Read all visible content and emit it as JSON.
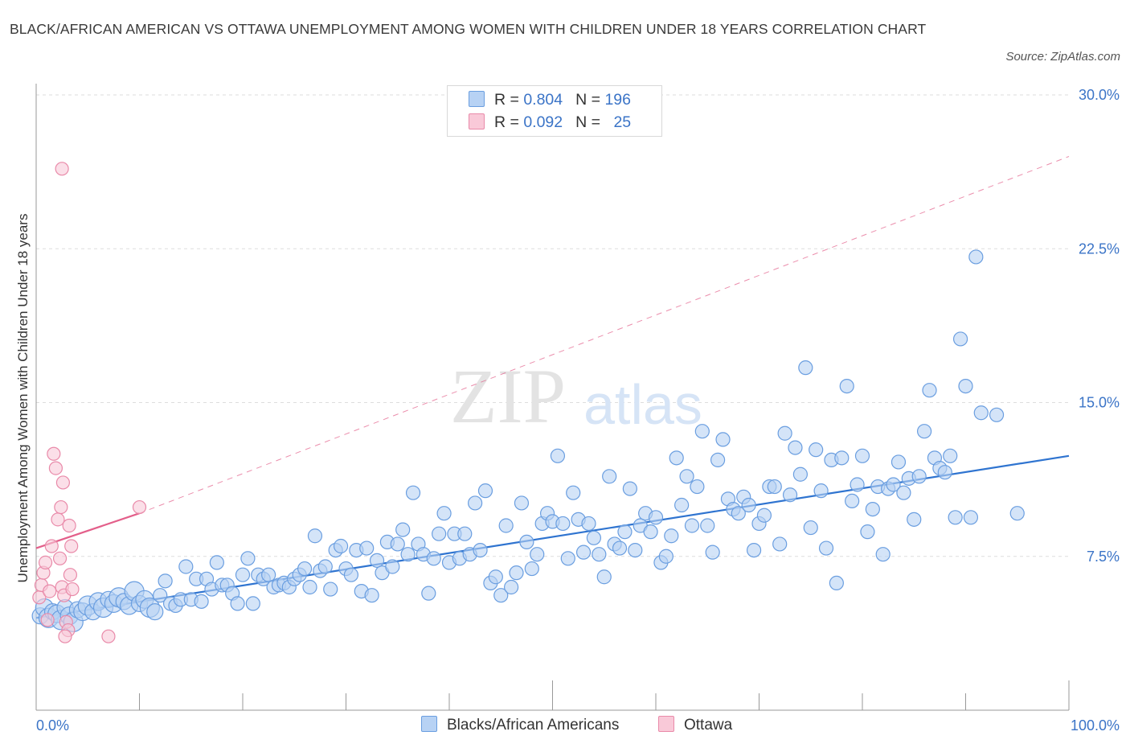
{
  "title": "BLACK/AFRICAN AMERICAN VS OTTAWA UNEMPLOYMENT AMONG WOMEN WITH CHILDREN UNDER 18 YEARS CORRELATION CHART",
  "source": "Source: ZipAtlas.com",
  "watermark": {
    "zip": "ZIP",
    "atlas": "atlas"
  },
  "legend": {
    "rows": [
      {
        "r_label": "R =",
        "r_value": "0.804",
        "n_label": "N =",
        "n_value": "196"
      },
      {
        "r_label": "R =",
        "r_value": "0.092",
        "n_label": "N =",
        "n_value": "25"
      }
    ]
  },
  "colors": {
    "blue_fill": "#b7d2f4",
    "blue_stroke": "#6a9ee0",
    "blue_line": "#2f74d0",
    "pink_fill": "#f9c9d8",
    "pink_stroke": "#e98aa9",
    "pink_line": "#e35f8a",
    "axis_text": "#3b74c7",
    "grid": "#dddddd"
  },
  "chart_data": {
    "type": "scatter",
    "title": "BLACK/AFRICAN AMERICAN VS OTTAWA UNEMPLOYMENT AMONG WOMEN WITH CHILDREN UNDER 18 YEARS CORRELATION CHART",
    "xlabel": "",
    "ylabel": "Unemployment Among Women with Children Under 18 years",
    "x_tick_labels": [
      "0.0%",
      "100.0%"
    ],
    "y_tick_labels": [
      "7.5%",
      "15.0%",
      "22.5%",
      "30.0%"
    ],
    "xlim": [
      0,
      100
    ],
    "ylim": [
      0,
      30
    ],
    "yticks": [
      7.5,
      15.0,
      22.5,
      30.0
    ],
    "grid": true,
    "legend_position": "bottom",
    "series": [
      {
        "name": "Blacks/African Americans",
        "R": 0.804,
        "N": 196,
        "trend": {
          "x": [
            0,
            100
          ],
          "y": [
            4.5,
            12.4
          ]
        },
        "points": [
          [
            0.4,
            4.6
          ],
          [
            0.8,
            5.0
          ],
          [
            1.2,
            4.5
          ],
          [
            1.6,
            4.8
          ],
          [
            2.0,
            4.7
          ],
          [
            2.4,
            4.4
          ],
          [
            2.8,
            5.0
          ],
          [
            3.2,
            4.6
          ],
          [
            3.6,
            4.3
          ],
          [
            4.0,
            4.9
          ],
          [
            4.5,
            4.8
          ],
          [
            5.0,
            5.1
          ],
          [
            5.5,
            4.8
          ],
          [
            6.0,
            5.3
          ],
          [
            6.5,
            5.0
          ],
          [
            7.0,
            5.4
          ],
          [
            7.5,
            5.2
          ],
          [
            8.0,
            5.5
          ],
          [
            8.5,
            5.3
          ],
          [
            9.0,
            5.1
          ],
          [
            9.5,
            5.8
          ],
          [
            10.0,
            5.2
          ],
          [
            10.5,
            5.4
          ],
          [
            11.0,
            5.0
          ],
          [
            11.5,
            4.8
          ],
          [
            12.0,
            5.6
          ],
          [
            12.5,
            6.3
          ],
          [
            13.0,
            5.2
          ],
          [
            13.5,
            5.1
          ],
          [
            14.0,
            5.4
          ],
          [
            14.5,
            7.0
          ],
          [
            15.0,
            5.4
          ],
          [
            15.5,
            6.4
          ],
          [
            16.0,
            5.3
          ],
          [
            16.5,
            6.4
          ],
          [
            17.0,
            5.9
          ],
          [
            17.5,
            7.2
          ],
          [
            18.0,
            6.1
          ],
          [
            18.5,
            6.1
          ],
          [
            19.0,
            5.7
          ],
          [
            19.5,
            5.2
          ],
          [
            20.0,
            6.6
          ],
          [
            20.5,
            7.4
          ],
          [
            21.0,
            5.2
          ],
          [
            21.5,
            6.6
          ],
          [
            22.0,
            6.4
          ],
          [
            22.5,
            6.6
          ],
          [
            23.0,
            6.0
          ],
          [
            23.5,
            6.1
          ],
          [
            24.0,
            6.2
          ],
          [
            24.5,
            6.0
          ],
          [
            25.0,
            6.4
          ],
          [
            25.5,
            6.6
          ],
          [
            26.0,
            6.9
          ],
          [
            26.5,
            6.0
          ],
          [
            27.0,
            8.5
          ],
          [
            27.5,
            6.8
          ],
          [
            28.0,
            7.0
          ],
          [
            28.5,
            5.9
          ],
          [
            29.0,
            7.8
          ],
          [
            29.5,
            8.0
          ],
          [
            30.0,
            6.9
          ],
          [
            30.5,
            6.6
          ],
          [
            31.0,
            7.8
          ],
          [
            31.5,
            5.8
          ],
          [
            32.0,
            7.9
          ],
          [
            32.5,
            5.6
          ],
          [
            33.0,
            7.3
          ],
          [
            33.5,
            6.7
          ],
          [
            34.0,
            8.2
          ],
          [
            34.5,
            7.0
          ],
          [
            35.0,
            8.1
          ],
          [
            35.5,
            8.8
          ],
          [
            36.0,
            7.6
          ],
          [
            36.5,
            10.6
          ],
          [
            37.0,
            8.1
          ],
          [
            37.5,
            7.6
          ],
          [
            38.0,
            5.7
          ],
          [
            38.5,
            7.4
          ],
          [
            39.0,
            8.6
          ],
          [
            39.5,
            9.6
          ],
          [
            40.0,
            7.2
          ],
          [
            40.5,
            8.6
          ],
          [
            41.0,
            7.4
          ],
          [
            41.5,
            8.6
          ],
          [
            42.0,
            7.6
          ],
          [
            42.5,
            10.1
          ],
          [
            43.0,
            7.8
          ],
          [
            43.5,
            10.7
          ],
          [
            44.0,
            6.2
          ],
          [
            44.5,
            6.5
          ],
          [
            45.0,
            5.6
          ],
          [
            45.5,
            9.0
          ],
          [
            46.0,
            6.0
          ],
          [
            46.5,
            6.7
          ],
          [
            47.0,
            10.1
          ],
          [
            47.5,
            8.2
          ],
          [
            48.0,
            6.9
          ],
          [
            48.5,
            7.6
          ],
          [
            49.0,
            9.1
          ],
          [
            49.5,
            9.6
          ],
          [
            50.0,
            9.2
          ],
          [
            50.5,
            12.4
          ],
          [
            51.0,
            9.1
          ],
          [
            51.5,
            7.4
          ],
          [
            52.0,
            10.6
          ],
          [
            52.5,
            9.3
          ],
          [
            53.0,
            7.7
          ],
          [
            53.5,
            9.1
          ],
          [
            54.0,
            8.4
          ],
          [
            54.5,
            7.6
          ],
          [
            55.0,
            6.5
          ],
          [
            55.5,
            11.4
          ],
          [
            56.0,
            8.1
          ],
          [
            56.5,
            7.9
          ],
          [
            57.0,
            8.7
          ],
          [
            57.5,
            10.8
          ],
          [
            58.0,
            7.8
          ],
          [
            58.5,
            9.0
          ],
          [
            59.0,
            9.6
          ],
          [
            59.5,
            8.7
          ],
          [
            60.0,
            9.4
          ],
          [
            60.5,
            7.2
          ],
          [
            61.0,
            7.5
          ],
          [
            61.5,
            8.5
          ],
          [
            62.0,
            12.3
          ],
          [
            62.5,
            10.0
          ],
          [
            63.0,
            11.4
          ],
          [
            63.5,
            9.0
          ],
          [
            64.0,
            10.9
          ],
          [
            64.5,
            13.6
          ],
          [
            65.0,
            9.0
          ],
          [
            65.5,
            7.7
          ],
          [
            66.0,
            12.2
          ],
          [
            66.5,
            13.2
          ],
          [
            67.0,
            10.3
          ],
          [
            67.5,
            9.8
          ],
          [
            68.0,
            9.6
          ],
          [
            68.5,
            10.4
          ],
          [
            69.0,
            10.0
          ],
          [
            69.5,
            7.8
          ],
          [
            70.0,
            9.1
          ],
          [
            70.5,
            9.5
          ],
          [
            71.0,
            10.9
          ],
          [
            71.5,
            10.9
          ],
          [
            72.0,
            8.1
          ],
          [
            72.5,
            13.5
          ],
          [
            73.0,
            10.5
          ],
          [
            73.5,
            12.8
          ],
          [
            74.0,
            11.5
          ],
          [
            74.5,
            16.7
          ],
          [
            75.0,
            8.9
          ],
          [
            75.5,
            12.7
          ],
          [
            76.0,
            10.7
          ],
          [
            76.5,
            7.9
          ],
          [
            77.0,
            12.2
          ],
          [
            77.5,
            6.2
          ],
          [
            78.0,
            12.3
          ],
          [
            78.5,
            15.8
          ],
          [
            79.0,
            10.2
          ],
          [
            79.5,
            11.0
          ],
          [
            80.0,
            12.4
          ],
          [
            80.5,
            8.7
          ],
          [
            81.0,
            9.8
          ],
          [
            81.5,
            10.9
          ],
          [
            82.0,
            7.6
          ],
          [
            82.5,
            10.8
          ],
          [
            83.0,
            11.0
          ],
          [
            83.5,
            12.1
          ],
          [
            84.0,
            10.6
          ],
          [
            84.5,
            11.3
          ],
          [
            85.0,
            9.3
          ],
          [
            85.5,
            11.4
          ],
          [
            86.0,
            13.6
          ],
          [
            86.5,
            15.6
          ],
          [
            87.0,
            12.3
          ],
          [
            87.5,
            11.8
          ],
          [
            88.0,
            11.6
          ],
          [
            88.5,
            12.4
          ],
          [
            89.0,
            9.4
          ],
          [
            89.5,
            18.1
          ],
          [
            90.0,
            15.8
          ],
          [
            90.5,
            9.4
          ],
          [
            91.0,
            22.1
          ],
          [
            91.5,
            14.5
          ],
          [
            93.0,
            14.4
          ],
          [
            95.0,
            9.6
          ]
        ]
      },
      {
        "name": "Ottawa",
        "R": 0.092,
        "N": 25,
        "trend": {
          "x": [
            0,
            10
          ],
          "y": [
            7.9,
            9.6
          ]
        },
        "trend_extension": {
          "x": [
            10,
            100
          ],
          "y": [
            9.6,
            27.0
          ]
        },
        "points": [
          [
            0.3,
            5.5
          ],
          [
            0.5,
            6.1
          ],
          [
            0.7,
            6.7
          ],
          [
            0.9,
            7.2
          ],
          [
            1.1,
            4.4
          ],
          [
            1.3,
            5.8
          ],
          [
            1.5,
            8.0
          ],
          [
            1.7,
            12.5
          ],
          [
            1.9,
            11.8
          ],
          [
            2.1,
            9.3
          ],
          [
            2.3,
            7.4
          ],
          [
            2.5,
            6.0
          ],
          [
            2.7,
            5.6
          ],
          [
            2.9,
            4.3
          ],
          [
            3.1,
            3.9
          ],
          [
            3.3,
            6.6
          ],
          [
            3.5,
            5.9
          ],
          [
            2.6,
            11.1
          ],
          [
            2.4,
            9.9
          ],
          [
            2.8,
            3.6
          ],
          [
            2.5,
            26.4
          ],
          [
            3.2,
            9.0
          ],
          [
            3.4,
            8.0
          ],
          [
            7.0,
            3.6
          ],
          [
            10.0,
            9.9
          ]
        ]
      }
    ]
  }
}
